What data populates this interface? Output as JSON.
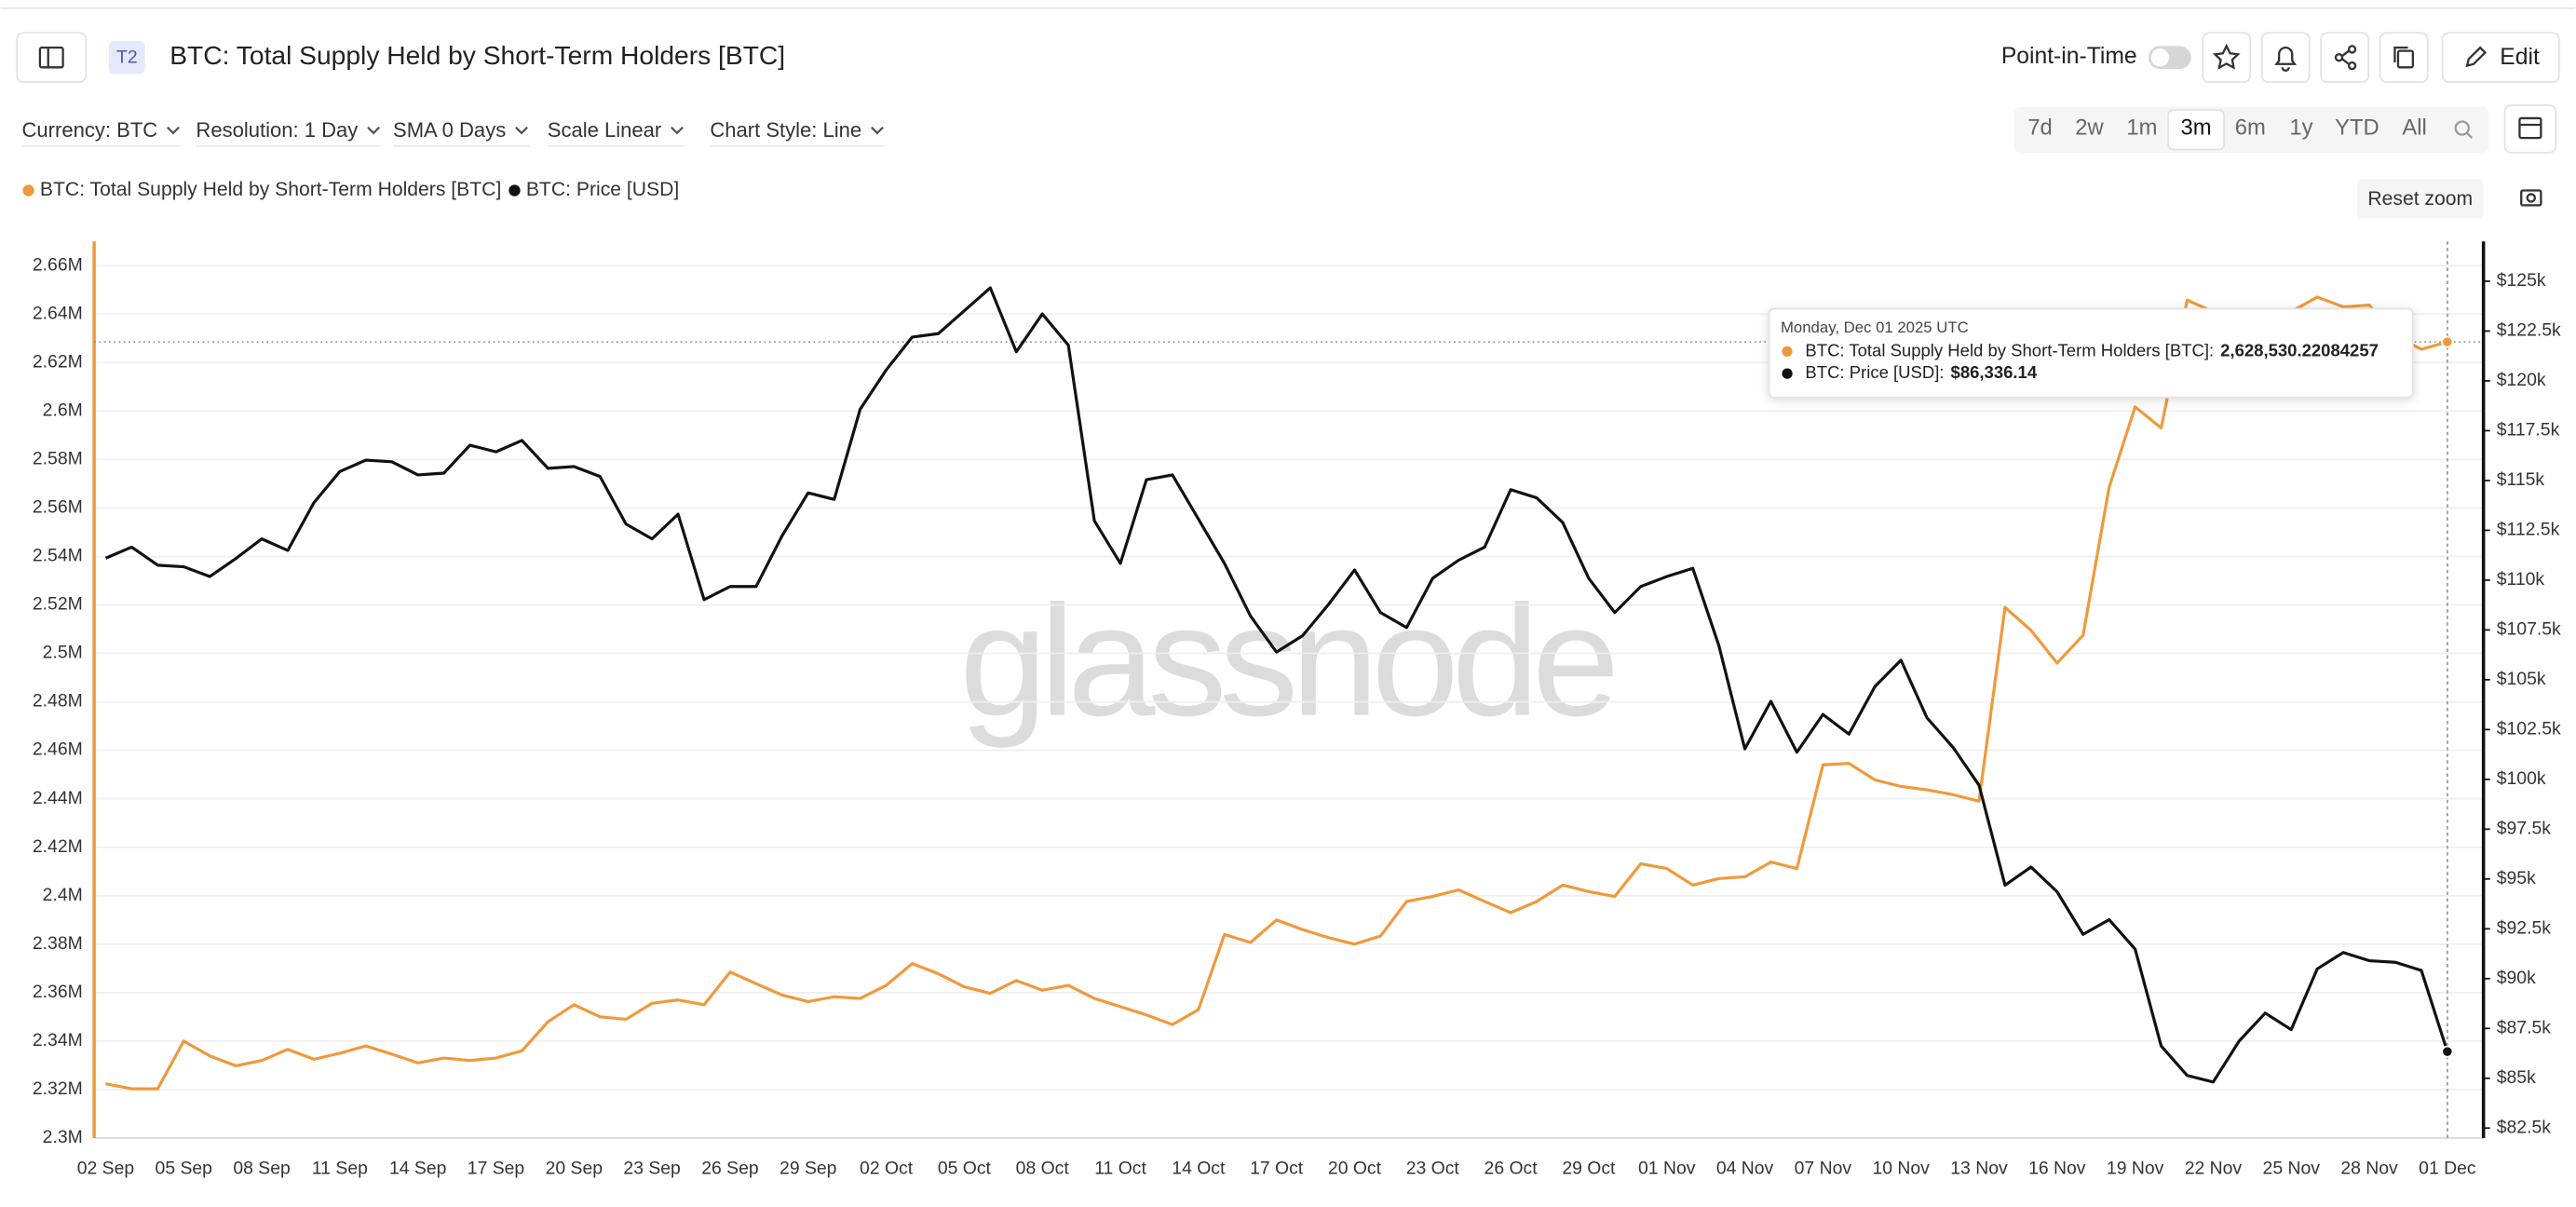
{
  "header": {
    "badge": "T2",
    "title": "BTC: Total Supply Held by Short-Term Holders [BTC]",
    "point_in_time": "Point-in-Time",
    "edit": "Edit"
  },
  "toolbar": {
    "currency": "Currency: BTC",
    "resolution": "Resolution: 1 Day",
    "sma": "SMA 0 Days",
    "scale": "Scale Linear",
    "chart_style": "Chart Style: Line"
  },
  "ranges": [
    "7d",
    "2w",
    "1m",
    "3m",
    "6m",
    "1y",
    "YTD",
    "All"
  ],
  "reset_zoom": "Reset zoom",
  "watermark": "glassnode",
  "chart_data": {
    "type": "line",
    "categories": [
      "02 Sep",
      null,
      null,
      "05 Sep",
      null,
      null,
      "08 Sep",
      null,
      null,
      "11 Sep",
      null,
      null,
      "14 Sep",
      null,
      null,
      "17 Sep",
      null,
      null,
      "20 Sep",
      null,
      null,
      "23 Sep",
      null,
      null,
      "26 Sep",
      null,
      null,
      "29 Sep",
      null,
      null,
      "02 Oct",
      null,
      null,
      "05 Oct",
      null,
      null,
      "08 Oct",
      null,
      null,
      "11 Oct",
      null,
      null,
      "14 Oct",
      null,
      null,
      "17 Oct",
      null,
      null,
      "20 Oct",
      null,
      null,
      "23 Oct",
      null,
      null,
      "26 Oct",
      null,
      null,
      "29 Oct",
      null,
      null,
      "01 Nov",
      null,
      null,
      "04 Nov",
      null,
      null,
      "07 Nov",
      null,
      null,
      "10 Nov",
      null,
      null,
      "13 Nov",
      null,
      null,
      "16 Nov",
      null,
      null,
      "19 Nov",
      null,
      null,
      "22 Nov",
      null,
      null,
      "25 Nov",
      null,
      null,
      "28 Nov",
      null,
      null,
      "01 Dec"
    ],
    "series": [
      {
        "name": "BTC: Total Supply Held by Short-Term Holders [BTC]",
        "color": "#f0993b",
        "values": [
          2322400,
          2320300,
          2320300,
          2340000,
          2333900,
          2329800,
          2332000,
          2336600,
          2332500,
          2335000,
          2338000,
          2334600,
          2331000,
          2333000,
          2332000,
          2333000,
          2336000,
          2348000,
          2355000,
          2350000,
          2349000,
          2355600,
          2357000,
          2355000,
          2368500,
          2363700,
          2359000,
          2356300,
          2358300,
          2357600,
          2363000,
          2372000,
          2367800,
          2362400,
          2359700,
          2365000,
          2361000,
          2363000,
          2357600,
          2354200,
          2350800,
          2346800,
          2353000,
          2384000,
          2380700,
          2390000,
          2386000,
          2382700,
          2380000,
          2383400,
          2397600,
          2399700,
          2402400,
          2397600,
          2393000,
          2397600,
          2404400,
          2401700,
          2399700,
          2413200,
          2411200,
          2404400,
          2407100,
          2407800,
          2413900,
          2411200,
          2454000,
          2454600,
          2447800,
          2445100,
          2443700,
          2441700,
          2439000,
          2519000,
          2509500,
          2496000,
          2507500,
          2568500,
          2601700,
          2593000,
          2645800,
          2641000,
          2637600,
          2641000,
          2641000,
          2647000,
          2643000,
          2643700,
          2631000,
          2625500,
          2628530.22084257
        ]
      },
      {
        "name": "BTC: Price [USD]",
        "color": "#111111",
        "axis": "y2",
        "values": [
          111100,
          111660,
          110750,
          110670,
          110180,
          111080,
          112070,
          111490,
          113880,
          115450,
          116020,
          115940,
          115280,
          115370,
          116770,
          116440,
          117010,
          115610,
          115700,
          115200,
          112810,
          112070,
          113310,
          109020,
          109680,
          109680,
          112230,
          114380,
          114050,
          118580,
          120550,
          122200,
          122370,
          123520,
          124670,
          121460,
          123360,
          121790,
          112980,
          110840,
          115040,
          115280,
          113060,
          110840,
          108200,
          106390,
          107210,
          108780,
          110510,
          108370,
          107620,
          110090,
          111000,
          111660,
          114540,
          114130,
          112890,
          110090,
          108370,
          109680,
          110180,
          110590,
          106720,
          101530,
          103920,
          101360,
          103260,
          102270,
          104660,
          105980,
          103090,
          101610,
          99710,
          94690,
          95600,
          94360,
          92220,
          92960,
          91480,
          86620,
          85140,
          84810,
          86870,
          88270,
          87440,
          90490,
          91310,
          90900,
          90820,
          90410,
          86336.14
        ]
      }
    ],
    "ylim": [
      2300000,
      2670000
    ],
    "yticks": [
      {
        "value": 2300000,
        "label": "2.3M"
      },
      {
        "value": 2320000,
        "label": "2.32M"
      },
      {
        "value": 2340000,
        "label": "2.34M"
      },
      {
        "value": 2360000,
        "label": "2.36M"
      },
      {
        "value": 2380000,
        "label": "2.38M"
      },
      {
        "value": 2400000,
        "label": "2.4M"
      },
      {
        "value": 2420000,
        "label": "2.42M"
      },
      {
        "value": 2440000,
        "label": "2.44M"
      },
      {
        "value": 2460000,
        "label": "2.46M"
      },
      {
        "value": 2480000,
        "label": "2.48M"
      },
      {
        "value": 2500000,
        "label": "2.5M"
      },
      {
        "value": 2520000,
        "label": "2.52M"
      },
      {
        "value": 2540000,
        "label": "2.54M"
      },
      {
        "value": 2560000,
        "label": "2.56M"
      },
      {
        "value": 2580000,
        "label": "2.58M"
      },
      {
        "value": 2600000,
        "label": "2.6M"
      },
      {
        "value": 2620000,
        "label": "2.62M"
      },
      {
        "value": 2640000,
        "label": "2.64M"
      },
      {
        "value": 2660000,
        "label": "2.66M"
      }
    ],
    "y2lim": [
      82000,
      127000
    ],
    "y2ticks": [
      {
        "value": 82500,
        "label": "$82.5k"
      },
      {
        "value": 85000,
        "label": "$85k"
      },
      {
        "value": 87500,
        "label": "$87.5k"
      },
      {
        "value": 90000,
        "label": "$90k"
      },
      {
        "value": 92500,
        "label": "$92.5k"
      },
      {
        "value": 95000,
        "label": "$95k"
      },
      {
        "value": 97500,
        "label": "$97.5k"
      },
      {
        "value": 100000,
        "label": "$100k"
      },
      {
        "value": 102500,
        "label": "$102.5k"
      },
      {
        "value": 105000,
        "label": "$105k"
      },
      {
        "value": 107500,
        "label": "$107.5k"
      },
      {
        "value": 110000,
        "label": "$110k"
      },
      {
        "value": 112500,
        "label": "$112.5k"
      },
      {
        "value": 115000,
        "label": "$115k"
      },
      {
        "value": 117500,
        "label": "$117.5k"
      },
      {
        "value": 120000,
        "label": "$120k"
      },
      {
        "value": 122500,
        "label": "$122.5k"
      },
      {
        "value": 125000,
        "label": "$125k"
      }
    ],
    "grid": true,
    "tooltip": {
      "date": "Monday, Dec 01 2025 UTC",
      "items": [
        {
          "label": "BTC: Total Supply Held by Short-Term Holders [BTC]:",
          "value": "2,628,530.22084257"
        },
        {
          "label": "BTC: Price [USD]:",
          "value": "$86,336.14"
        }
      ]
    }
  }
}
